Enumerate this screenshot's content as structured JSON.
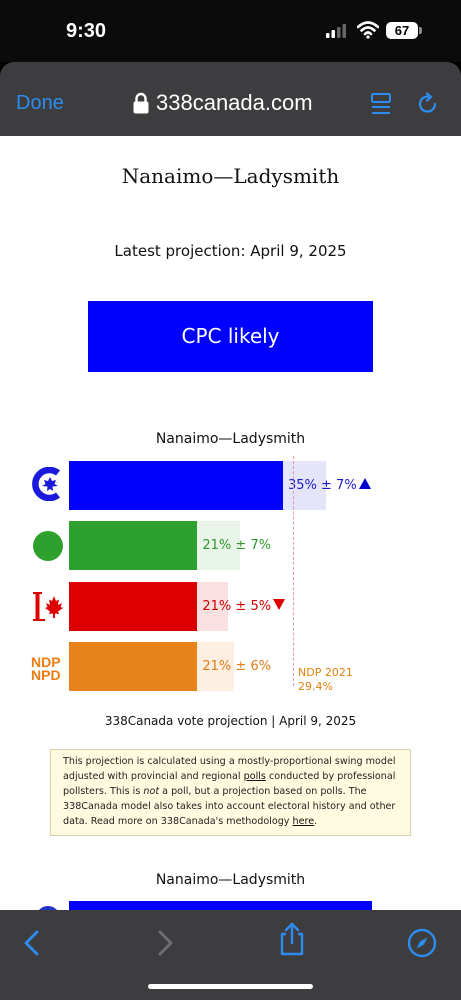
{
  "status_bar": {
    "time": "9:30",
    "battery": "67",
    "icons": [
      "signal-icon",
      "wifi-icon",
      "battery-icon"
    ]
  },
  "browser": {
    "done_label": "Done",
    "url": "338canada.com",
    "icons": [
      "lock-icon",
      "reader-icon",
      "reload-icon",
      "back-icon",
      "forward-icon",
      "share-icon",
      "compass-icon"
    ]
  },
  "page": {
    "riding_title": "Nanaimo—Ladysmith",
    "latest_projection": "Latest projection: April 9, 2025",
    "status": "CPC likely",
    "chart_title": "Nanaimo—Ladysmith",
    "caption": "338Canada vote projection | April 9, 2025",
    "note": {
      "text_1": "This projection is calculated using a mostly-proportional swing model adjusted with provincial and regional ",
      "link_polls": "polls",
      "text_2": " conducted by professional pollsters. This is ",
      "emphasis": "not",
      "text_3": " a poll, but a projection based on polls. The 338Canada model also takes into account electoral history and other data. Read more on 338Canada's methodology ",
      "link_here": "here",
      "text_4": "."
    },
    "second_title": "Nanaimo—Ladysmith"
  },
  "chart_data": {
    "type": "bar",
    "orientation": "horizontal",
    "title": "Nanaimo—Ladysmith",
    "categories": [
      "CPC",
      "GPC",
      "LPC",
      "NDP"
    ],
    "values": [
      35,
      21,
      21,
      21
    ],
    "margins": [
      7,
      7,
      5,
      6
    ],
    "labels": [
      "35% ± 7%",
      "21% ± 7%",
      "21% ± 5%",
      "21% ± 6%"
    ],
    "trend": [
      "up",
      "none",
      "down",
      "none"
    ],
    "colors": [
      "#0000ff",
      "#2ea02e",
      "#dd0000",
      "#e8821a"
    ],
    "range_colors": [
      "#e4e4fb",
      "#e9f5e8",
      "#fae0e0",
      "#fcefe2"
    ],
    "text_colors": [
      "#1a1acc",
      "#2e9a2e",
      "#cc0000",
      "#e0801a"
    ],
    "reference": {
      "label": "NDP 2021",
      "value_label": "29.4%",
      "value": 29.4
    },
    "xlim": [
      0,
      49.5
    ]
  }
}
